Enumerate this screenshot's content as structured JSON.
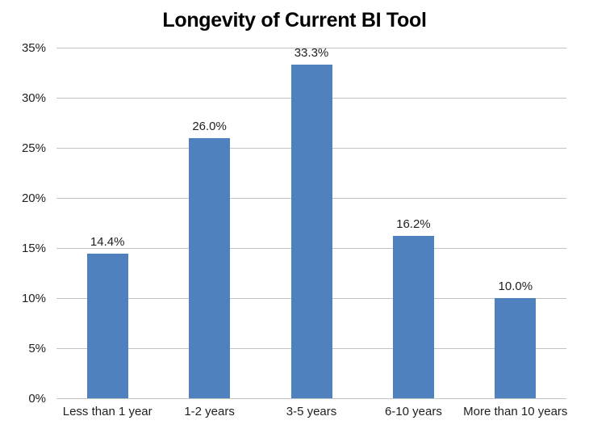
{
  "chart_data": {
    "type": "bar",
    "title": "Longevity of Current BI Tool",
    "categories": [
      "Less than 1 year",
      "1-2 years",
      "3-5 years",
      "6-10 years",
      "More than 10 years"
    ],
    "values": [
      14.4,
      26.0,
      33.3,
      16.2,
      10.0
    ],
    "value_labels": [
      "14.4%",
      "26.0%",
      "33.3%",
      "16.2%",
      "10.0%"
    ],
    "yticks": [
      0,
      5,
      10,
      15,
      20,
      25,
      30,
      35
    ],
    "ytick_labels": [
      "0%",
      "5%",
      "10%",
      "15%",
      "20%",
      "25%",
      "30%",
      "35%"
    ],
    "ylim": [
      0,
      35
    ],
    "xlabel": "",
    "ylabel": "",
    "grid": true,
    "legend_position": "none",
    "bar_color": "#4E81BD",
    "gridline_color": "#C3C3C3",
    "title_color": "#000000",
    "label_color": "#1F1F1F",
    "background_color": "#FFFFFF"
  }
}
